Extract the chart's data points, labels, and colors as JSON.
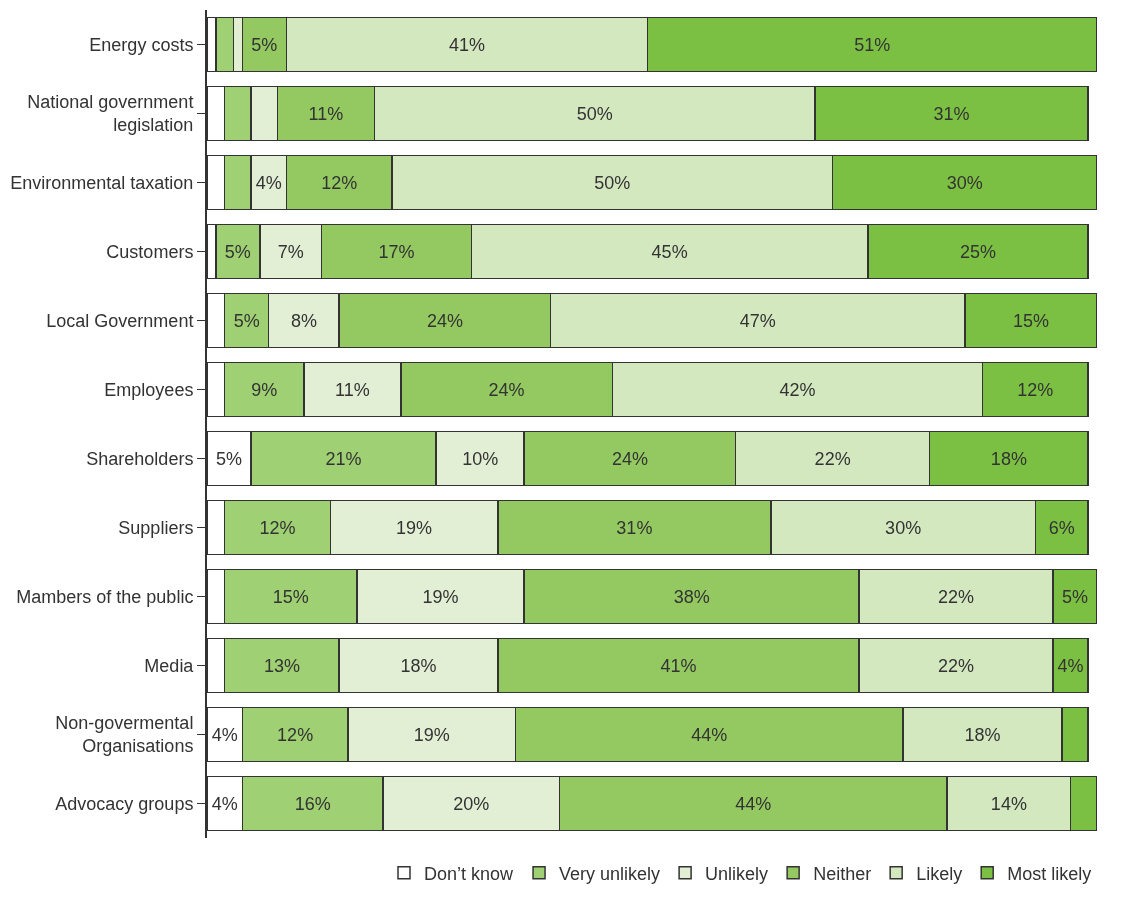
{
  "chart_data": {
    "type": "bar",
    "orientation": "horizontal",
    "stacked": true,
    "legend": "bottom",
    "tick_labels": "y",
    "xlim": [
      0,
      101
    ],
    "categories": [
      "Energy costs",
      "National government legislation",
      "Environmental taxation",
      "Customers",
      "Local Government",
      "Employees",
      "Shareholders",
      "Suppliers",
      "Mambers of the public",
      "Media",
      "Non-govermental Organisations",
      "Advocacy groups"
    ],
    "series": [
      {
        "name": "Don’t know",
        "color": "#ffffff",
        "values": [
          1,
          2,
          2,
          1,
          2,
          2,
          5,
          2,
          2,
          2,
          4,
          4
        ],
        "value_labels": [
          null,
          null,
          null,
          null,
          null,
          null,
          "5%",
          null,
          null,
          null,
          "4%",
          "4%"
        ]
      },
      {
        "name": "Very unlikely",
        "color": "#9fd073",
        "values": [
          2,
          3,
          3,
          5,
          5,
          9,
          21,
          12,
          15,
          13,
          12,
          16
        ],
        "value_labels": [
          null,
          null,
          null,
          "5%",
          "5%",
          "9%",
          "21%",
          "12%",
          "15%",
          "13%",
          "12%",
          "16%"
        ]
      },
      {
        "name": "Unlikely",
        "color": "#e2efd5",
        "values": [
          1,
          3,
          4,
          7,
          8,
          11,
          10,
          19,
          19,
          18,
          19,
          20
        ],
        "value_labels": [
          null,
          null,
          "4%",
          "7%",
          "8%",
          "11%",
          "10%",
          "19%",
          "19%",
          "18%",
          "19%",
          "20%"
        ]
      },
      {
        "name": "Neither",
        "color": "#94c962",
        "values": [
          5,
          11,
          12,
          17,
          24,
          24,
          24,
          31,
          38,
          41,
          44,
          44
        ],
        "value_labels": [
          "5%",
          "11%",
          "12%",
          "17%",
          "24%",
          "24%",
          "24%",
          "31%",
          "38%",
          "41%",
          "44%",
          "44%"
        ]
      },
      {
        "name": "Likely",
        "color": "#d4e8c0",
        "values": [
          41,
          50,
          50,
          45,
          47,
          42,
          22,
          30,
          22,
          22,
          18,
          14
        ],
        "value_labels": [
          "41%",
          "50%",
          "50%",
          "45%",
          "47%",
          "42%",
          "22%",
          "30%",
          "22%",
          "22%",
          "18%",
          "14%"
        ]
      },
      {
        "name": "Most likely",
        "color": "#7cc043",
        "values": [
          51,
          31,
          30,
          25,
          15,
          12,
          18,
          6,
          5,
          4,
          3,
          3
        ],
        "value_labels": [
          "51%",
          "31%",
          "30%",
          "25%",
          "15%",
          "12%",
          "18%",
          "6%",
          "5%",
          "4%",
          null,
          null
        ]
      }
    ]
  }
}
